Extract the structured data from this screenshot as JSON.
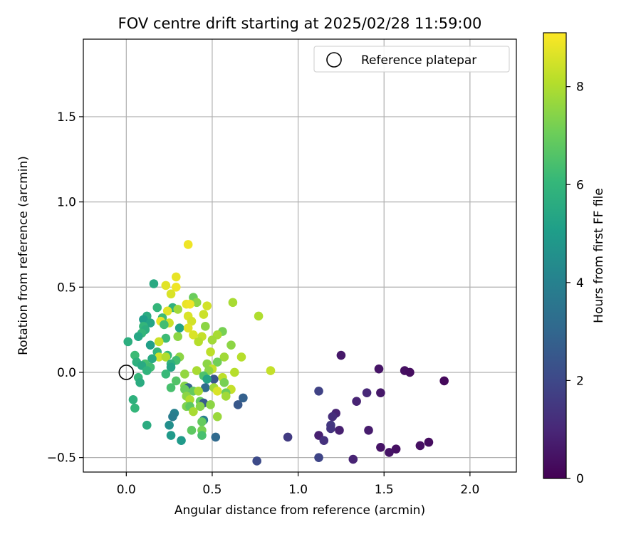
{
  "chart_data": {
    "type": "scatter",
    "title": "FOV centre drift starting at 2025/02/28 11:59:00",
    "xlabel": "Angular distance from reference (arcmin)",
    "ylabel": "Rotation from reference (arcmin)",
    "xlim": [
      -0.25,
      2.27
    ],
    "ylim": [
      -0.585,
      1.955
    ],
    "xticks": [
      0.0,
      0.5,
      1.0,
      1.5,
      2.0
    ],
    "xtick_labels": [
      "0.0",
      "0.5",
      "1.0",
      "1.5",
      "2.0"
    ],
    "yticks": [
      -0.5,
      0.0,
      0.5,
      1.0,
      1.5
    ],
    "ytick_labels": [
      "−0.5",
      "0.0",
      "0.5",
      "1.0",
      "1.5"
    ],
    "grid": true,
    "legend": {
      "placement": "top-right",
      "entries": [
        "Reference platepar"
      ]
    },
    "reference_point": {
      "x": 0.0,
      "y": 0.0,
      "label": "Reference platepar"
    },
    "colorbar": {
      "label": "Hours from first FF file",
      "colormap": "viridis",
      "range": [
        0,
        9.1
      ],
      "ticks": [
        0,
        2,
        4,
        6,
        8
      ],
      "tick_labels": [
        "0",
        "2",
        "4",
        "6",
        "8"
      ]
    },
    "points": [
      {
        "x": 1.25,
        "y": 0.1,
        "h": 0.6
      },
      {
        "x": 1.47,
        "y": 0.02,
        "h": 0.5
      },
      {
        "x": 1.62,
        "y": 0.01,
        "h": 0.4
      },
      {
        "x": 1.65,
        "y": 0.0,
        "h": 0.3
      },
      {
        "x": 1.85,
        "y": -0.05,
        "h": 0.2
      },
      {
        "x": 1.12,
        "y": -0.11,
        "h": 1.8
      },
      {
        "x": 1.4,
        "y": -0.12,
        "h": 1.0
      },
      {
        "x": 1.48,
        "y": -0.12,
        "h": 0.6
      },
      {
        "x": 1.34,
        "y": -0.17,
        "h": 0.9
      },
      {
        "x": 1.22,
        "y": -0.24,
        "h": 0.9
      },
      {
        "x": 1.2,
        "y": -0.26,
        "h": 1.2
      },
      {
        "x": 1.19,
        "y": -0.31,
        "h": 1.5
      },
      {
        "x": 1.19,
        "y": -0.33,
        "h": 1.4
      },
      {
        "x": 1.24,
        "y": -0.34,
        "h": 0.8
      },
      {
        "x": 1.41,
        "y": -0.34,
        "h": 0.7
      },
      {
        "x": 1.12,
        "y": -0.37,
        "h": 0.8
      },
      {
        "x": 0.94,
        "y": -0.38,
        "h": 1.6
      },
      {
        "x": 1.15,
        "y": -0.4,
        "h": 1.3
      },
      {
        "x": 1.76,
        "y": -0.41,
        "h": 0.3
      },
      {
        "x": 1.71,
        "y": -0.43,
        "h": 0.4
      },
      {
        "x": 1.48,
        "y": -0.44,
        "h": 0.5
      },
      {
        "x": 1.57,
        "y": -0.45,
        "h": 0.4
      },
      {
        "x": 1.53,
        "y": -0.47,
        "h": 0.5
      },
      {
        "x": 1.12,
        "y": -0.5,
        "h": 1.9
      },
      {
        "x": 1.32,
        "y": -0.51,
        "h": 0.9
      },
      {
        "x": 0.76,
        "y": -0.52,
        "h": 2.1
      },
      {
        "x": 0.36,
        "y": 0.75,
        "h": 8.9
      },
      {
        "x": 0.29,
        "y": 0.56,
        "h": 8.8
      },
      {
        "x": 0.16,
        "y": 0.52,
        "h": 5.5
      },
      {
        "x": 0.23,
        "y": 0.51,
        "h": 8.7
      },
      {
        "x": 0.29,
        "y": 0.5,
        "h": 8.9
      },
      {
        "x": 0.26,
        "y": 0.46,
        "h": 8.6
      },
      {
        "x": 0.39,
        "y": 0.44,
        "h": 7.0
      },
      {
        "x": 0.41,
        "y": 0.41,
        "h": 7.5
      },
      {
        "x": 0.62,
        "y": 0.41,
        "h": 7.9
      },
      {
        "x": 0.35,
        "y": 0.4,
        "h": 8.8
      },
      {
        "x": 0.37,
        "y": 0.4,
        "h": 8.9
      },
      {
        "x": 0.47,
        "y": 0.39,
        "h": 8.5
      },
      {
        "x": 0.18,
        "y": 0.38,
        "h": 6.0
      },
      {
        "x": 0.27,
        "y": 0.38,
        "h": 5.8
      },
      {
        "x": 0.3,
        "y": 0.37,
        "h": 7.8
      },
      {
        "x": 0.24,
        "y": 0.36,
        "h": 8.7
      },
      {
        "x": 0.45,
        "y": 0.34,
        "h": 8.4
      },
      {
        "x": 0.77,
        "y": 0.33,
        "h": 8.0
      },
      {
        "x": 0.12,
        "y": 0.33,
        "h": 5.6
      },
      {
        "x": 0.36,
        "y": 0.33,
        "h": 8.6
      },
      {
        "x": 0.21,
        "y": 0.32,
        "h": 6.2
      },
      {
        "x": 0.1,
        "y": 0.31,
        "h": 5.0
      },
      {
        "x": 0.38,
        "y": 0.3,
        "h": 8.5
      },
      {
        "x": 0.2,
        "y": 0.3,
        "h": 8.8
      },
      {
        "x": 0.14,
        "y": 0.29,
        "h": 5.3
      },
      {
        "x": 0.25,
        "y": 0.29,
        "h": 8.4
      },
      {
        "x": 0.22,
        "y": 0.28,
        "h": 6.3
      },
      {
        "x": 0.1,
        "y": 0.27,
        "h": 6.0
      },
      {
        "x": 0.46,
        "y": 0.27,
        "h": 7.5
      },
      {
        "x": 0.31,
        "y": 0.26,
        "h": 5.2
      },
      {
        "x": 0.36,
        "y": 0.26,
        "h": 8.7
      },
      {
        "x": 0.11,
        "y": 0.25,
        "h": 5.7
      },
      {
        "x": 0.56,
        "y": 0.24,
        "h": 7.2
      },
      {
        "x": 0.09,
        "y": 0.23,
        "h": 6.0
      },
      {
        "x": 0.39,
        "y": 0.22,
        "h": 8.6
      },
      {
        "x": 0.53,
        "y": 0.22,
        "h": 7.9
      },
      {
        "x": 0.07,
        "y": 0.21,
        "h": 5.4
      },
      {
        "x": 0.3,
        "y": 0.21,
        "h": 7.5
      },
      {
        "x": 0.44,
        "y": 0.21,
        "h": 8.3
      },
      {
        "x": 0.23,
        "y": 0.2,
        "h": 6.2
      },
      {
        "x": 0.5,
        "y": 0.19,
        "h": 7.8
      },
      {
        "x": 0.42,
        "y": 0.18,
        "h": 8.1
      },
      {
        "x": 0.19,
        "y": 0.18,
        "h": 8.4
      },
      {
        "x": 0.01,
        "y": 0.18,
        "h": 5.7
      },
      {
        "x": 0.61,
        "y": 0.16,
        "h": 7.5
      },
      {
        "x": 0.14,
        "y": 0.16,
        "h": 5.1
      },
      {
        "x": 0.49,
        "y": 0.12,
        "h": 8.2
      },
      {
        "x": 0.18,
        "y": 0.12,
        "h": 6.0
      },
      {
        "x": 0.05,
        "y": 0.1,
        "h": 6.2
      },
      {
        "x": 0.24,
        "y": 0.1,
        "h": 6.1
      },
      {
        "x": 0.31,
        "y": 0.09,
        "h": 7.5
      },
      {
        "x": 0.19,
        "y": 0.09,
        "h": 8.5
      },
      {
        "x": 0.23,
        "y": 0.09,
        "h": 8.0
      },
      {
        "x": 0.57,
        "y": 0.09,
        "h": 7.8
      },
      {
        "x": 0.67,
        "y": 0.09,
        "h": 8.1
      },
      {
        "x": 0.15,
        "y": 0.08,
        "h": 5.5
      },
      {
        "x": 0.29,
        "y": 0.07,
        "h": 6.3
      },
      {
        "x": 0.06,
        "y": 0.06,
        "h": 5.8
      },
      {
        "x": 0.53,
        "y": 0.06,
        "h": 7.1
      },
      {
        "x": 0.26,
        "y": 0.05,
        "h": 5.8
      },
      {
        "x": 0.47,
        "y": 0.05,
        "h": 7.5
      },
      {
        "x": 0.11,
        "y": 0.05,
        "h": 6.4
      },
      {
        "x": 0.09,
        "y": 0.04,
        "h": 5.5
      },
      {
        "x": 0.14,
        "y": 0.03,
        "h": 6.3
      },
      {
        "x": 0.26,
        "y": 0.03,
        "h": 5.3
      },
      {
        "x": 0.5,
        "y": 0.02,
        "h": 8.3
      },
      {
        "x": 0.41,
        "y": 0.01,
        "h": 7.9
      },
      {
        "x": 0.48,
        "y": 0.01,
        "h": 7.5
      },
      {
        "x": 0.84,
        "y": 0.01,
        "h": 8.3
      },
      {
        "x": 0.12,
        "y": 0.01,
        "h": 5.9
      },
      {
        "x": 0.34,
        "y": -0.01,
        "h": 7.6
      },
      {
        "x": 0.63,
        "y": 0.0,
        "h": 8.1
      },
      {
        "x": 0.23,
        "y": -0.01,
        "h": 6.1
      },
      {
        "x": 0.07,
        "y": -0.03,
        "h": 6.0
      },
      {
        "x": 0.45,
        "y": -0.02,
        "h": 6.5
      },
      {
        "x": 0.56,
        "y": -0.03,
        "h": 8.2
      },
      {
        "x": 0.51,
        "y": -0.04,
        "h": 2.4
      },
      {
        "x": 0.47,
        "y": -0.04,
        "h": 5.3
      },
      {
        "x": 0.29,
        "y": -0.05,
        "h": 6.6
      },
      {
        "x": 0.08,
        "y": -0.06,
        "h": 5.6
      },
      {
        "x": 0.57,
        "y": -0.06,
        "h": 7.2
      },
      {
        "x": 0.34,
        "y": -0.08,
        "h": 7.4
      },
      {
        "x": 0.46,
        "y": -0.09,
        "h": 3.2
      },
      {
        "x": 0.51,
        "y": -0.09,
        "h": 7.8
      },
      {
        "x": 0.26,
        "y": -0.09,
        "h": 6.4
      },
      {
        "x": 0.36,
        "y": -0.09,
        "h": 2.9
      },
      {
        "x": 0.61,
        "y": -0.1,
        "h": 8.3
      },
      {
        "x": 0.34,
        "y": -0.1,
        "h": 7.0
      },
      {
        "x": 0.39,
        "y": -0.11,
        "h": 6.9
      },
      {
        "x": 0.53,
        "y": -0.11,
        "h": 8.6
      },
      {
        "x": 0.42,
        "y": -0.11,
        "h": 7.9
      },
      {
        "x": 0.58,
        "y": -0.12,
        "h": 7.0
      },
      {
        "x": 0.35,
        "y": -0.14,
        "h": 7.5
      },
      {
        "x": 0.58,
        "y": -0.14,
        "h": 7.8
      },
      {
        "x": 0.68,
        "y": -0.15,
        "h": 2.8
      },
      {
        "x": 0.37,
        "y": -0.16,
        "h": 8.0
      },
      {
        "x": 0.43,
        "y": -0.17,
        "h": 6.9
      },
      {
        "x": 0.04,
        "y": -0.16,
        "h": 5.8
      },
      {
        "x": 0.45,
        "y": -0.18,
        "h": 2.6
      },
      {
        "x": 0.65,
        "y": -0.19,
        "h": 2.5
      },
      {
        "x": 0.49,
        "y": -0.19,
        "h": 7.5
      },
      {
        "x": 0.35,
        "y": -0.2,
        "h": 7.3
      },
      {
        "x": 0.43,
        "y": -0.2,
        "h": 7.4
      },
      {
        "x": 0.37,
        "y": -0.2,
        "h": 6.8
      },
      {
        "x": 0.05,
        "y": -0.21,
        "h": 6.0
      },
      {
        "x": 0.39,
        "y": -0.23,
        "h": 7.9
      },
      {
        "x": 0.28,
        "y": -0.24,
        "h": 4.0
      },
      {
        "x": 0.53,
        "y": -0.26,
        "h": 7.7
      },
      {
        "x": 0.27,
        "y": -0.26,
        "h": 3.8
      },
      {
        "x": 0.45,
        "y": -0.28,
        "h": 3.9
      },
      {
        "x": 0.44,
        "y": -0.29,
        "h": 6.9
      },
      {
        "x": 0.25,
        "y": -0.31,
        "h": 4.5
      },
      {
        "x": 0.12,
        "y": -0.31,
        "h": 5.6
      },
      {
        "x": 0.44,
        "y": -0.34,
        "h": 7.2
      },
      {
        "x": 0.38,
        "y": -0.34,
        "h": 6.8
      },
      {
        "x": 0.26,
        "y": -0.37,
        "h": 4.9
      },
      {
        "x": 0.44,
        "y": -0.37,
        "h": 6.4
      },
      {
        "x": 0.52,
        "y": -0.38,
        "h": 3.1
      },
      {
        "x": 0.32,
        "y": -0.4,
        "h": 4.9
      }
    ]
  }
}
